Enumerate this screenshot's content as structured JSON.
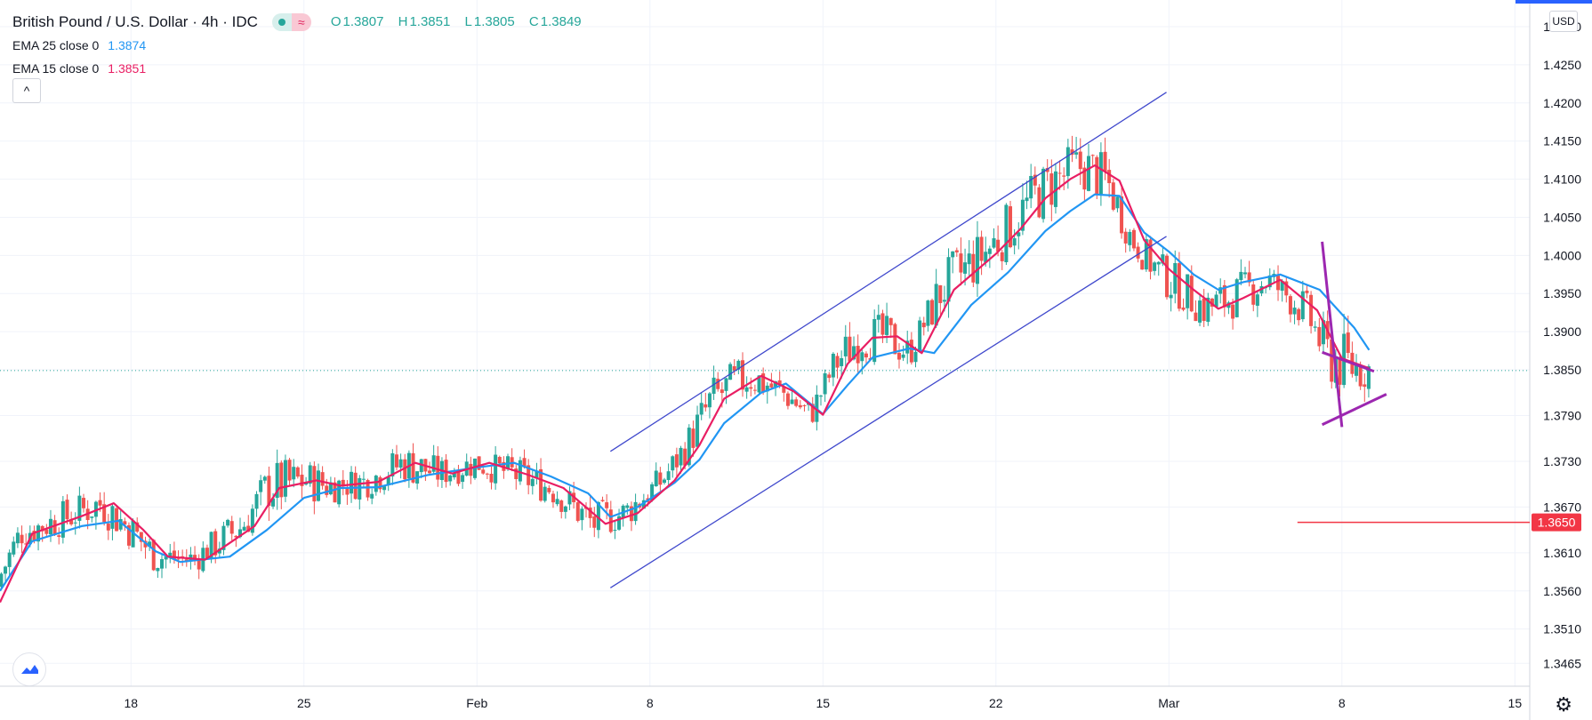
{
  "header": {
    "title": "British Pound / U.S. Dollar · 4h · IDC",
    "ohlc": [
      {
        "key": "O",
        "value": "1.3807"
      },
      {
        "key": "H",
        "value": "1.3851"
      },
      {
        "key": "L",
        "value": "1.3805"
      },
      {
        "key": "C",
        "value": "1.3849"
      }
    ],
    "status_wave_glyph": "≈"
  },
  "indicators": [
    {
      "label": "EMA 25 close 0",
      "value": "1.3874",
      "color": "#2196f3"
    },
    {
      "label": "EMA 15 close 0",
      "value": "1.3851",
      "color": "#e91e63"
    }
  ],
  "controls": {
    "collapse_glyph": "^",
    "currency": "USD",
    "settings_glyph": "⚙"
  },
  "colors": {
    "up": "#26a69a",
    "down": "#ef5350",
    "channel": "#3f48cc",
    "triangle": "#9c27b0",
    "level": "#f23645"
  },
  "chart_data": {
    "type": "candlestick",
    "title": "British Pound / U.S. Dollar · 4h · IDC",
    "y_axis": {
      "min": 1.3435,
      "max": 1.4335,
      "ticks": [
        "1.4300",
        "1.4250",
        "1.4200",
        "1.4150",
        "1.4100",
        "1.4050",
        "1.4000",
        "1.3950",
        "1.3900",
        "1.3850",
        "1.3790",
        "1.3730",
        "1.3670",
        "1.3610",
        "1.3560",
        "1.3510",
        "1.3465"
      ]
    },
    "x_axis": {
      "labels": [
        "18",
        "25",
        "Feb",
        "8",
        "15",
        "22",
        "Mar",
        "8",
        "15"
      ],
      "label_days": [
        18,
        25,
        32,
        39,
        46,
        53,
        60,
        67,
        74
      ],
      "domain_days": [
        12.7,
        74.6
      ]
    },
    "current_price": {
      "value": 1.3849,
      "style": "dotted"
    },
    "level_line": {
      "value": 1.365,
      "label": "1.3650",
      "from_day": 65.2
    },
    "trend_channel": {
      "upper": [
        [
          37.4,
          1.3743
        ],
        [
          59.9,
          1.4214
        ]
      ],
      "lower": [
        [
          37.4,
          1.3564
        ],
        [
          59.9,
          1.4025
        ]
      ]
    },
    "triangle": {
      "steep_line": [
        [
          66.2,
          1.4018
        ],
        [
          67.0,
          1.3775
        ]
      ],
      "upper": [
        [
          66.2,
          1.3873
        ],
        [
          68.3,
          1.3848
        ]
      ],
      "lower": [
        [
          66.2,
          1.3778
        ],
        [
          68.8,
          1.3818
        ]
      ]
    },
    "ema_series": [
      {
        "name": "EMA 25",
        "color": "#2196f3",
        "points": [
          [
            12.7,
            1.356
          ],
          [
            14,
            1.3625
          ],
          [
            16,
            1.3645
          ],
          [
            17.5,
            1.3652
          ],
          [
            19,
            1.3612
          ],
          [
            20,
            1.3598
          ],
          [
            22,
            1.3605
          ],
          [
            23.5,
            1.364
          ],
          [
            25,
            1.3682
          ],
          [
            26.5,
            1.3695
          ],
          [
            28,
            1.3696
          ],
          [
            30,
            1.3712
          ],
          [
            32,
            1.3722
          ],
          [
            33.5,
            1.3728
          ],
          [
            35,
            1.371
          ],
          [
            36.5,
            1.3688
          ],
          [
            37.4,
            1.3657
          ],
          [
            38.5,
            1.367
          ],
          [
            40,
            1.3702
          ],
          [
            41,
            1.3732
          ],
          [
            42,
            1.378
          ],
          [
            43.5,
            1.382
          ],
          [
            44.5,
            1.3832
          ],
          [
            46,
            1.3792
          ],
          [
            47,
            1.383
          ],
          [
            48,
            1.3866
          ],
          [
            49.5,
            1.3878
          ],
          [
            50.5,
            1.3872
          ],
          [
            52,
            1.3935
          ],
          [
            53.5,
            1.3978
          ],
          [
            55,
            1.4032
          ],
          [
            56,
            1.4058
          ],
          [
            57,
            1.408
          ],
          [
            58,
            1.4078
          ],
          [
            59,
            1.403
          ],
          [
            60,
            1.4005
          ],
          [
            61,
            1.3975
          ],
          [
            62,
            1.3955
          ],
          [
            63,
            1.3965
          ],
          [
            64.5,
            1.3975
          ],
          [
            66.1,
            1.3955
          ],
          [
            67.5,
            1.3905
          ],
          [
            68.1,
            1.3876
          ]
        ]
      },
      {
        "name": "EMA 15",
        "color": "#e91e63",
        "points": [
          [
            12.7,
            1.3545
          ],
          [
            14,
            1.3635
          ],
          [
            16,
            1.3658
          ],
          [
            17.3,
            1.3675
          ],
          [
            18.5,
            1.364
          ],
          [
            19.5,
            1.3605
          ],
          [
            21,
            1.3601
          ],
          [
            23,
            1.3645
          ],
          [
            24,
            1.3695
          ],
          [
            25.5,
            1.3705
          ],
          [
            26.5,
            1.3698
          ],
          [
            28,
            1.3703
          ],
          [
            29.5,
            1.3728
          ],
          [
            31,
            1.3714
          ],
          [
            32.5,
            1.3728
          ],
          [
            34,
            1.3713
          ],
          [
            35.5,
            1.3695
          ],
          [
            37.2,
            1.3648
          ],
          [
            38.5,
            1.3662
          ],
          [
            40,
            1.3705
          ],
          [
            41,
            1.3751
          ],
          [
            42,
            1.3812
          ],
          [
            43.5,
            1.3842
          ],
          [
            44.8,
            1.3822
          ],
          [
            46,
            1.3791
          ],
          [
            47,
            1.3858
          ],
          [
            48,
            1.3892
          ],
          [
            49,
            1.3894
          ],
          [
            50,
            1.3872
          ],
          [
            51.3,
            1.3955
          ],
          [
            53,
            1.4002
          ],
          [
            54,
            1.4035
          ],
          [
            55,
            1.4075
          ],
          [
            56,
            1.41
          ],
          [
            57,
            1.4118
          ],
          [
            58,
            1.4098
          ],
          [
            59,
            1.402
          ],
          [
            60,
            1.3982
          ],
          [
            61,
            1.3955
          ],
          [
            62,
            1.393
          ],
          [
            63,
            1.3944
          ],
          [
            64.5,
            1.3968
          ],
          [
            66,
            1.3928
          ],
          [
            67,
            1.3865
          ],
          [
            68.1,
            1.3852
          ]
        ]
      }
    ]
  }
}
